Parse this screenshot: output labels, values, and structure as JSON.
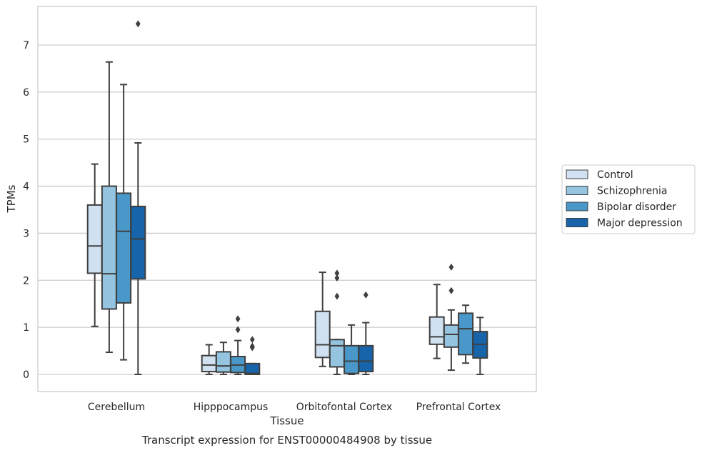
{
  "caption": "Transcript expression for ENST00000484908 by tissue",
  "colors": {
    "Control": "#d0e1f2",
    "Schizophrenia": "#94c4df",
    "Bipolar disorder": "#4a98c9",
    "Major depression": "#1764ab",
    "box_edge": "#3f3f3f",
    "grid": "#cccccc"
  },
  "chart_data": {
    "type": "boxplot",
    "title": "",
    "xlabel": "Tissue",
    "ylabel": "TPMs",
    "ylim": [
      -0.35,
      7.8
    ],
    "yticks": [
      0,
      1,
      2,
      3,
      4,
      5,
      6,
      7
    ],
    "grid": true,
    "legend_position": "right",
    "categories": [
      "Cerebellum",
      "Hipppocampus",
      "Orbitofontal Cortex",
      "Prefrontal Cortex"
    ],
    "series": [
      {
        "name": "Control",
        "boxes": [
          {
            "whislo": 1.02,
            "q1": 2.15,
            "med": 2.73,
            "q3": 3.6,
            "whishi": 4.47,
            "fliers": []
          },
          {
            "whislo": 0.0,
            "q1": 0.06,
            "med": 0.2,
            "q3": 0.4,
            "whishi": 0.63,
            "fliers": []
          },
          {
            "whislo": 0.17,
            "q1": 0.36,
            "med": 0.63,
            "q3": 1.34,
            "whishi": 2.17,
            "fliers": []
          },
          {
            "whislo": 0.34,
            "q1": 0.64,
            "med": 0.8,
            "q3": 1.22,
            "whishi": 1.91,
            "fliers": []
          }
        ]
      },
      {
        "name": "Schizophrenia",
        "boxes": [
          {
            "whislo": 0.47,
            "q1": 1.39,
            "med": 2.14,
            "q3": 4.0,
            "whishi": 6.64,
            "fliers": []
          },
          {
            "whislo": 0.0,
            "q1": 0.05,
            "med": 0.18,
            "q3": 0.48,
            "whishi": 0.68,
            "fliers": []
          },
          {
            "whislo": 0.0,
            "q1": 0.16,
            "med": 0.61,
            "q3": 0.74,
            "whishi": 0.74,
            "fliers": [
              2.15,
              2.05,
              1.66
            ]
          },
          {
            "whislo": 0.09,
            "q1": 0.58,
            "med": 0.85,
            "q3": 1.05,
            "whishi": 1.37,
            "fliers": [
              2.28,
              1.78
            ]
          }
        ]
      },
      {
        "name": "Bipolar disorder",
        "boxes": [
          {
            "whislo": 0.31,
            "q1": 1.52,
            "med": 3.04,
            "q3": 3.85,
            "whishi": 6.16,
            "fliers": []
          },
          {
            "whislo": 0.0,
            "q1": 0.04,
            "med": 0.2,
            "q3": 0.38,
            "whishi": 0.72,
            "fliers": [
              1.18,
              0.95
            ]
          },
          {
            "whislo": 0.0,
            "q1": 0.02,
            "med": 0.28,
            "q3": 0.61,
            "whishi": 1.05,
            "fliers": []
          },
          {
            "whislo": 0.24,
            "q1": 0.42,
            "med": 0.97,
            "q3": 1.3,
            "whishi": 1.47,
            "fliers": []
          }
        ]
      },
      {
        "name": "Major depression",
        "boxes": [
          {
            "whislo": 0.0,
            "q1": 2.03,
            "med": 2.88,
            "q3": 3.57,
            "whishi": 4.92,
            "fliers": [
              7.45
            ]
          },
          {
            "whislo": 0.0,
            "q1": 0.0,
            "med": 0.02,
            "q3": 0.23,
            "whishi": 0.23,
            "fliers": [
              0.74,
              0.6,
              0.57
            ]
          },
          {
            "whislo": 0.0,
            "q1": 0.06,
            "med": 0.28,
            "q3": 0.61,
            "whishi": 1.1,
            "fliers": [
              1.69
            ]
          },
          {
            "whislo": 0.0,
            "q1": 0.35,
            "med": 0.64,
            "q3": 0.91,
            "whishi": 1.21,
            "fliers": []
          }
        ]
      }
    ]
  }
}
